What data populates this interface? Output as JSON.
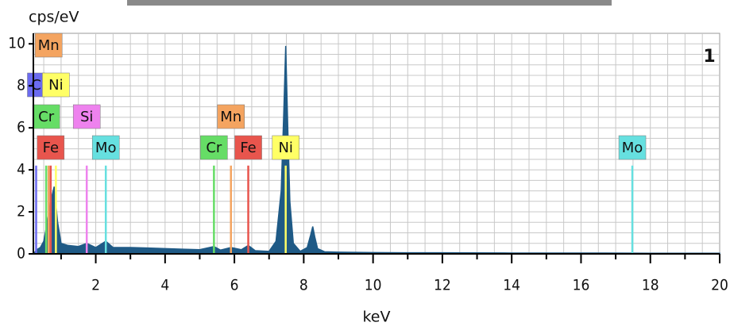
{
  "chart_data": {
    "type": "area",
    "y_label": "cps/eV",
    "x_label": "keV",
    "annotation": "1",
    "xlim": [
      0.2,
      20
    ],
    "xticks": [
      2,
      4,
      6,
      8,
      10,
      12,
      14,
      16,
      18,
      20
    ],
    "ylim": [
      0,
      10.5
    ],
    "yticks": [
      0,
      2,
      4,
      6,
      8,
      10
    ],
    "grid": true,
    "color": "#1f5a86",
    "x": [
      0.2,
      0.3,
      0.4,
      0.5,
      0.6,
      0.7,
      0.8,
      0.9,
      1.0,
      1.2,
      1.5,
      1.74,
      2.0,
      2.29,
      2.5,
      3,
      3.5,
      4,
      4.5,
      5,
      5.41,
      5.6,
      5.9,
      6.2,
      6.4,
      6.6,
      7.0,
      7.2,
      7.35,
      7.42,
      7.48,
      7.54,
      7.6,
      7.7,
      7.9,
      8.1,
      8.2,
      8.26,
      8.32,
      8.4,
      8.6,
      9,
      10,
      11,
      12,
      14,
      16,
      18,
      20
    ],
    "values": [
      0,
      0.2,
      0.3,
      0.6,
      1.5,
      2.5,
      3.2,
      1.5,
      0.5,
      0.4,
      0.35,
      0.5,
      0.3,
      0.6,
      0.3,
      0.3,
      0.28,
      0.25,
      0.22,
      0.2,
      0.35,
      0.18,
      0.3,
      0.2,
      0.4,
      0.15,
      0.12,
      0.6,
      3.0,
      6.5,
      9.9,
      6.0,
      2.5,
      0.5,
      0.12,
      0.3,
      0.9,
      1.3,
      0.8,
      0.25,
      0.1,
      0.08,
      0.06,
      0.05,
      0.05,
      0.04,
      0.04,
      0.03,
      0.03
    ],
    "marker_height": 4.2,
    "markers": [
      {
        "label": "Mn",
        "energy": 0.64,
        "color": "#f4a460"
      },
      {
        "label": "C",
        "energy": 0.28,
        "color": "#6b6bf0"
      },
      {
        "label": "Ni",
        "energy": 0.85,
        "color": "#ffff66"
      },
      {
        "label": "Cr",
        "energy": 0.57,
        "color": "#66dd66"
      },
      {
        "label": "Si",
        "energy": 1.74,
        "color": "#ee82ee"
      },
      {
        "label": "Fe",
        "energy": 0.7,
        "color": "#e8554d"
      },
      {
        "label": "Mo",
        "energy": 2.29,
        "color": "#66e0e0"
      },
      {
        "label": "Cr",
        "energy": 5.41,
        "color": "#66dd66"
      },
      {
        "label": "Mn",
        "energy": 5.9,
        "color": "#f4a460"
      },
      {
        "label": "Fe",
        "energy": 6.4,
        "color": "#e8554d"
      },
      {
        "label": "Ni",
        "energy": 7.48,
        "color": "#ffff66"
      },
      {
        "label": "Mo",
        "energy": 17.48,
        "color": "#66e0e0"
      }
    ]
  }
}
